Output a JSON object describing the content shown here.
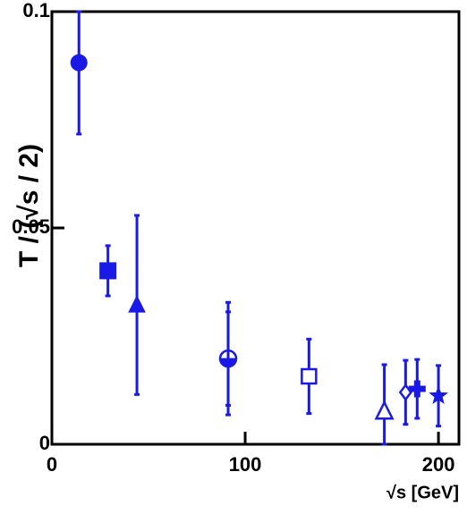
{
  "chart_data": {
    "type": "scatter",
    "xlabel": "√s [GeV]",
    "ylabel": "T / (√s / 2)",
    "x": [
      14,
      29,
      44,
      91.2,
      91.2,
      133,
      172,
      183,
      189,
      200
    ],
    "values": [
      0.0882,
      0.0401,
      0.0322,
      0.0198,
      0.0198,
      0.0157,
      0.0076,
      0.012,
      0.0128,
      0.0112
    ],
    "errors": [
      0.0165,
      0.0058,
      0.0207,
      0.013,
      0.0108,
      0.0086,
      0.0108,
      0.0074,
      0.0068,
      0.007
    ],
    "markers": [
      "circle-filled",
      "square-filled",
      "triangle-filled",
      "circle-open",
      "circle-half",
      "square-open",
      "triangle-open",
      "diamond-open",
      "cross-filled",
      "star-filled"
    ],
    "color": "#1a1ae6",
    "xlim": [
      0,
      210.6
    ],
    "xticks": [
      0,
      100,
      200
    ],
    "ylim": [
      0,
      0.1
    ],
    "yticks": [
      0,
      0.05,
      0.1
    ]
  }
}
